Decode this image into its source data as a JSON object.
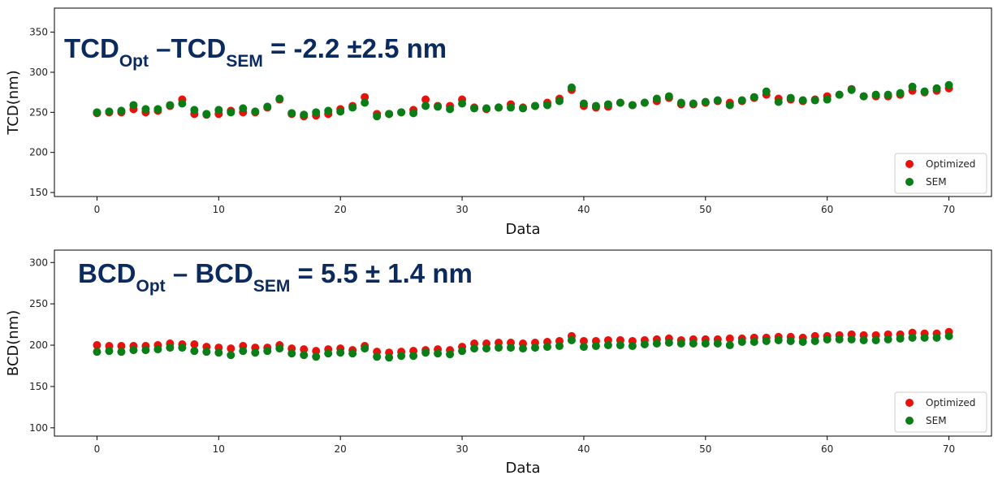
{
  "colors": {
    "optimized": "#e8120c",
    "sem": "#0a7d16",
    "annotation": "#0b2a5e"
  },
  "chart_data": [
    {
      "type": "scatter",
      "title": "",
      "xlabel": "Data",
      "ylabel": "TCD(nm)",
      "xlim": [
        -3.5,
        73.5
      ],
      "ylim": [
        145,
        380
      ],
      "xticks": [
        0,
        10,
        20,
        30,
        40,
        50,
        60,
        70
      ],
      "yticks": [
        150,
        200,
        250,
        300,
        350
      ],
      "grid": false,
      "legend_position": "lower-right",
      "annotation": {
        "main1": "TCD",
        "sub1": "Opt",
        "mid": " –TCD",
        "sub2": "SEM",
        "tail": " = -2.2 ±2.5 nm"
      },
      "series": [
        {
          "name": "Optimized",
          "color": "#e8120c",
          "values": [
            249,
            250,
            250,
            254,
            250,
            252,
            258,
            266,
            248,
            247,
            248,
            252,
            250,
            250,
            256,
            266,
            248,
            245,
            246,
            248,
            254,
            258,
            269,
            248,
            248,
            250,
            253,
            266,
            258,
            258,
            266,
            256,
            254,
            256,
            260,
            256,
            258,
            262,
            267,
            278,
            258,
            256,
            257,
            262,
            259,
            262,
            264,
            268,
            260,
            260,
            262,
            264,
            262,
            264,
            268,
            272,
            267,
            266,
            264,
            266,
            270,
            272,
            279,
            270,
            270,
            270,
            272,
            277,
            275,
            277,
            280
          ]
        },
        {
          "name": "SEM",
          "color": "#0a7d16",
          "values": [
            250,
            251,
            252,
            259,
            254,
            254,
            259,
            261,
            253,
            248,
            253,
            250,
            255,
            251,
            257,
            267,
            249,
            247,
            250,
            252,
            251,
            256,
            262,
            245,
            248,
            250,
            249,
            258,
            257,
            254,
            261,
            255,
            255,
            256,
            256,
            255,
            258,
            259,
            264,
            281,
            261,
            258,
            260,
            262,
            259,
            262,
            267,
            270,
            262,
            261,
            263,
            265,
            259,
            265,
            269,
            276,
            263,
            268,
            265,
            265,
            266,
            272,
            278,
            270,
            272,
            272,
            274,
            282,
            276,
            280,
            284
          ]
        }
      ]
    },
    {
      "type": "scatter",
      "title": "",
      "xlabel": "Data",
      "ylabel": "BCD(nm)",
      "xlim": [
        -3.5,
        73.5
      ],
      "ylim": [
        90,
        315
      ],
      "xticks": [
        0,
        10,
        20,
        30,
        40,
        50,
        60,
        70
      ],
      "yticks": [
        100,
        150,
        200,
        250,
        300
      ],
      "grid": false,
      "legend_position": "lower-right",
      "annotation": {
        "main1": "BCD",
        "sub1": "Opt",
        "mid": " – BCD",
        "sub2": "SEM",
        "tail": " = 5.5 ± 1.4 nm"
      },
      "series": [
        {
          "name": "Optimized",
          "color": "#e8120c",
          "values": [
            200,
            199,
            199,
            199,
            199,
            200,
            202,
            201,
            201,
            198,
            197,
            196,
            199,
            197,
            197,
            200,
            196,
            195,
            193,
            195,
            196,
            194,
            199,
            192,
            191,
            192,
            193,
            194,
            195,
            194,
            198,
            202,
            202,
            203,
            203,
            202,
            203,
            204,
            205,
            211,
            205,
            205,
            206,
            206,
            205,
            206,
            207,
            208,
            206,
            207,
            207,
            207,
            208,
            208,
            209,
            209,
            210,
            210,
            209,
            211,
            211,
            212,
            213,
            212,
            212,
            213,
            213,
            215,
            214,
            214,
            216
          ]
        },
        {
          "name": "SEM",
          "color": "#0a7d16",
          "values": [
            192,
            193,
            192,
            194,
            194,
            195,
            197,
            197,
            193,
            192,
            191,
            188,
            193,
            191,
            193,
            196,
            190,
            188,
            186,
            190,
            191,
            190,
            196,
            186,
            185,
            187,
            187,
            191,
            190,
            189,
            193,
            196,
            196,
            197,
            197,
            196,
            197,
            198,
            199,
            206,
            198,
            199,
            200,
            200,
            199,
            201,
            202,
            203,
            202,
            202,
            202,
            202,
            200,
            204,
            204,
            205,
            206,
            205,
            204,
            205,
            207,
            207,
            207,
            206,
            206,
            207,
            208,
            209,
            209,
            209,
            211
          ]
        }
      ]
    }
  ]
}
